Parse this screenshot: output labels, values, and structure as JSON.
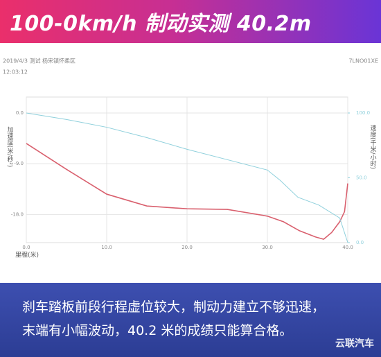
{
  "chart_data": {
    "type": "line",
    "title": "100-0km/h 制动实测 40.2m",
    "meta_date": "2019/4/3 测试 杨宋镇怀柔区",
    "meta_time": "12:03:12",
    "meta_id": "7LNO01XE",
    "ylabel": "加速度(米/秒²)",
    "y2label": "速度(千米/小时)",
    "xlabel": "里程(米)",
    "xlim": [
      0,
      40
    ],
    "xticks": [
      {
        "value": 0,
        "label": "0.0"
      },
      {
        "value": 10,
        "label": "10.0"
      },
      {
        "value": 20,
        "label": "20.0"
      },
      {
        "value": 30,
        "label": "30.0"
      },
      {
        "value": 40,
        "label": "40.0"
      }
    ],
    "ylim": [
      -23,
      0
    ],
    "yticks": [
      {
        "value": 0,
        "label": "0.0"
      },
      {
        "value": -9,
        "label": "-9.0"
      },
      {
        "value": -18,
        "label": "-18.0"
      }
    ],
    "y2lim": [
      0,
      100
    ],
    "y2ticks": [
      {
        "value": 100,
        "label": "100.0"
      },
      {
        "value": 50,
        "label": "50.0"
      },
      {
        "value": 0,
        "label": "0.0"
      }
    ],
    "grid": true,
    "series": [
      {
        "name": "加速度",
        "color": "#d9606e",
        "x": [
          0,
          5,
          10,
          15,
          20,
          25,
          30,
          32,
          34,
          36,
          37,
          38,
          39,
          39.6,
          40
        ],
        "values": [
          -5.4,
          -10,
          -14.4,
          -16.5,
          -17,
          -17.1,
          -18.3,
          -19.3,
          -20.9,
          -22,
          -22.4,
          -21.2,
          -19.3,
          -17.5,
          -12.5
        ]
      },
      {
        "name": "速度",
        "color": "#8fd0dc",
        "axis": "y2",
        "x": [
          0,
          5,
          10,
          15,
          20,
          25,
          30,
          31.6,
          33.8,
          36.4,
          39,
          40
        ],
        "values": [
          100,
          95,
          89,
          81,
          72,
          64,
          56,
          48,
          35,
          29,
          19,
          0
        ]
      }
    ],
    "caption": [
      "刹车踏板前段行程虚位较大，制动力建立不够迅速，",
      "末端有小幅波动，40.2 米的成绩只能算合格。"
    ],
    "watermark": "云联汽车"
  }
}
